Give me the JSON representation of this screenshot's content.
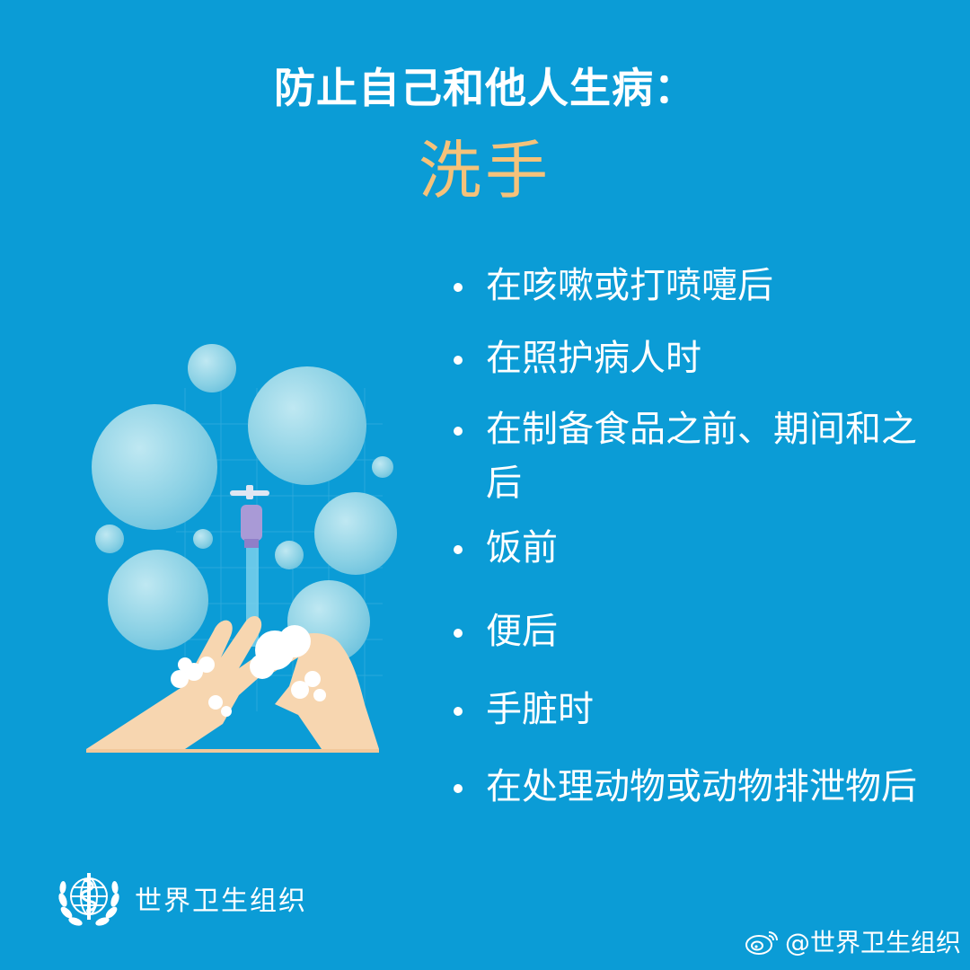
{
  "header": {
    "title": "防止自己和他人生病：",
    "subtitle": "洗手"
  },
  "list": {
    "items": [
      "在咳嗽或打喷嚏后",
      "在照护病人时",
      "在制备食品之前、期间和之后",
      "饭前",
      "便后",
      "手脏时",
      "在处理动物或动物排泄物后"
    ]
  },
  "footer": {
    "org_name": "世界卫生组织",
    "weibo_handle": "@世界卫生组织"
  },
  "icons": {
    "illustration": "handwashing-illustration-icon",
    "emblem": "who-emblem-icon",
    "weibo": "weibo-icon"
  },
  "colors": {
    "background": "#0b9cd6",
    "title": "#ffffff",
    "subtitle": "#f5c27a"
  }
}
